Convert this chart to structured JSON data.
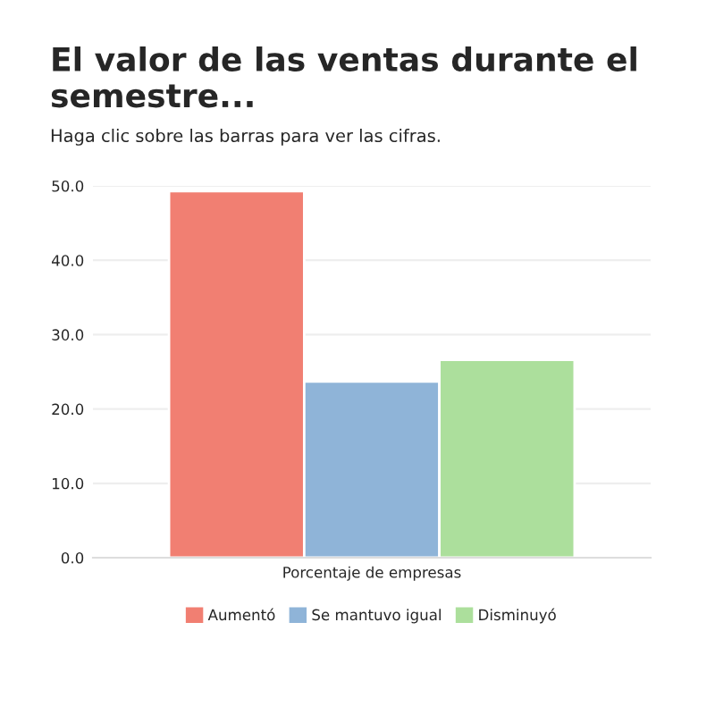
{
  "chart_data": {
    "type": "bar",
    "title": "El valor de las ventas durante el semestre...",
    "subtitle": "Haga clic sobre las barras para ver las cifras.",
    "categories": [
      "Porcentaje de empresas"
    ],
    "series": [
      {
        "name": "Aumentó",
        "color": "#f17f72",
        "values": [
          49.3
        ]
      },
      {
        "name": "Se mantuvo igual",
        "color": "#8fb4d8",
        "values": [
          23.7
        ]
      },
      {
        "name": "Disminuyó",
        "color": "#acdf9c",
        "values": [
          26.6
        ]
      }
    ],
    "ylim": [
      0,
      50
    ],
    "yticks": [
      {
        "value": 0,
        "label": "0.0"
      },
      {
        "value": 10,
        "label": "10.0"
      },
      {
        "value": 20,
        "label": "20.0"
      },
      {
        "value": 30,
        "label": "30.0"
      },
      {
        "value": 40,
        "label": "40.0"
      },
      {
        "value": 50,
        "label": "50.0"
      }
    ],
    "grid": "y",
    "legend": "bottom"
  }
}
